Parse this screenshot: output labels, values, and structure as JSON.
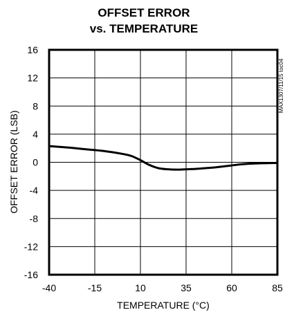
{
  "chart_data": {
    "type": "line",
    "title_line1": "OFFSET ERROR",
    "title_line2": "vs. TEMPERATURE",
    "xlabel": "TEMPERATURE (°C)",
    "ylabel": "OFFSET ERROR (LSB)",
    "side_code": "MAX1307/11/15 toc04",
    "xlim": [
      -40,
      85
    ],
    "ylim": [
      -16,
      16
    ],
    "x_ticks": [
      -40,
      -15,
      10,
      35,
      60,
      85
    ],
    "x_tick_labels": [
      "-40",
      "-15",
      "10",
      "35",
      "60",
      "85"
    ],
    "y_ticks": [
      16,
      12,
      8,
      4,
      0,
      -4,
      -8,
      -12,
      -16
    ],
    "y_tick_labels": [
      "16",
      "12",
      "8",
      "4",
      "0",
      "-4",
      "-8",
      "-12",
      "-16"
    ],
    "grid": true,
    "series": [
      {
        "x": [
          -40,
          -30,
          -20,
          -10,
          0,
          5,
          10,
          15,
          20,
          25,
          30,
          35,
          40,
          45,
          50,
          55,
          60,
          65,
          70,
          75,
          80,
          85
        ],
        "y": [
          2.3,
          2.1,
          1.85,
          1.6,
          1.2,
          0.9,
          0.3,
          -0.4,
          -0.85,
          -1.0,
          -1.05,
          -1.0,
          -0.95,
          -0.85,
          -0.75,
          -0.6,
          -0.45,
          -0.3,
          -0.2,
          -0.15,
          -0.12,
          -0.1
        ]
      }
    ]
  }
}
